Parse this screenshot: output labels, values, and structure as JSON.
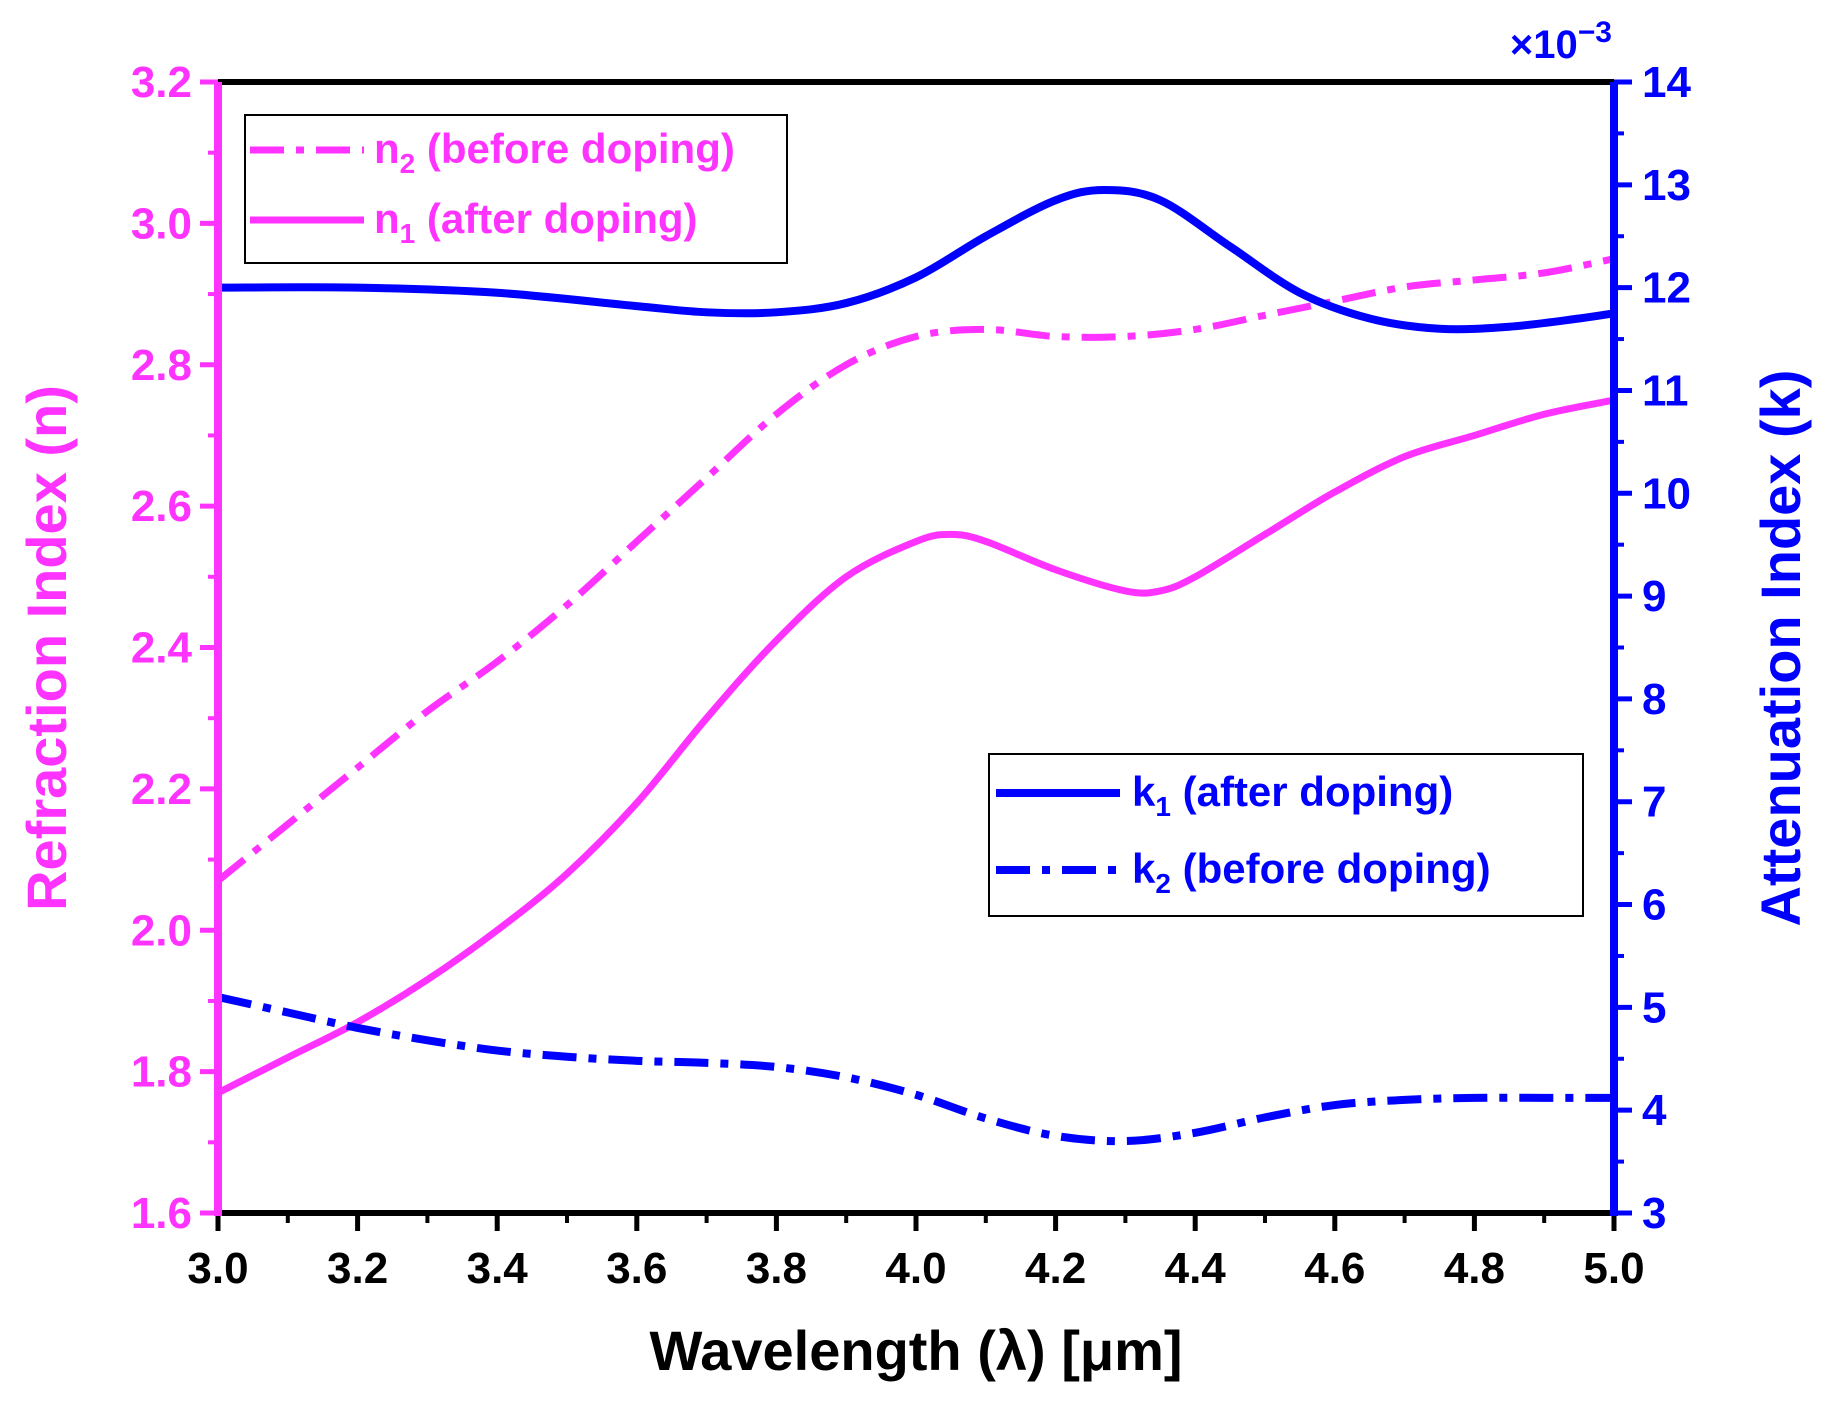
{
  "chart_data": {
    "type": "line",
    "xlabel": "Wavelength (λ) [μm]",
    "ylabel_left": "Refraction Index (n)",
    "ylabel_right": "Attenuation Index (k)",
    "right_multiplier_base": "×10",
    "right_multiplier_exp": "−3",
    "xlim": [
      3.0,
      5.0
    ],
    "ylim_left": [
      1.6,
      3.2
    ],
    "ylim_right": [
      3,
      14
    ],
    "x_ticks": [
      "3.0",
      "3.2",
      "3.4",
      "3.6",
      "3.8",
      "4.0",
      "4.2",
      "4.4",
      "4.6",
      "4.8",
      "5.0"
    ],
    "y_left_ticks": [
      "1.6",
      "1.8",
      "2.0",
      "2.2",
      "2.4",
      "2.6",
      "2.8",
      "3.0",
      "3.2"
    ],
    "y_right_ticks": [
      "3",
      "4",
      "5",
      "6",
      "7",
      "8",
      "9",
      "10",
      "11",
      "12",
      "13",
      "14"
    ],
    "colors": {
      "n": "#ff33ff",
      "k": "#0000ff",
      "frame": "#000000"
    },
    "legend_n": [
      {
        "sym": "n",
        "sub": "2",
        "rest": " (before doping)",
        "style": "dashdot"
      },
      {
        "sym": "n",
        "sub": "1",
        "rest": " (after doping)",
        "style": "solid"
      }
    ],
    "legend_k": [
      {
        "sym": "k",
        "sub": "1",
        "rest": " (after doping)",
        "style": "solid"
      },
      {
        "sym": "k",
        "sub": "2",
        "rest": " (before doping)",
        "style": "dashdot"
      }
    ],
    "series": [
      {
        "name": "n2 (before doping)",
        "axis": "left",
        "style": "dashdot",
        "x": [
          3.0,
          3.1,
          3.2,
          3.3,
          3.4,
          3.5,
          3.6,
          3.7,
          3.8,
          3.9,
          4.0,
          4.1,
          4.2,
          4.3,
          4.4,
          4.5,
          4.6,
          4.7,
          4.8,
          4.9,
          5.0
        ],
        "y": [
          2.07,
          2.15,
          2.23,
          2.31,
          2.38,
          2.46,
          2.55,
          2.64,
          2.73,
          2.8,
          2.84,
          2.85,
          2.84,
          2.84,
          2.85,
          2.87,
          2.89,
          2.91,
          2.92,
          2.93,
          2.95
        ]
      },
      {
        "name": "n1 (after doping)",
        "axis": "left",
        "style": "solid",
        "x": [
          3.0,
          3.1,
          3.2,
          3.3,
          3.4,
          3.5,
          3.6,
          3.7,
          3.8,
          3.9,
          4.0,
          4.05,
          4.1,
          4.2,
          4.3,
          4.35,
          4.4,
          4.5,
          4.6,
          4.7,
          4.8,
          4.9,
          5.0
        ],
        "y": [
          1.77,
          1.82,
          1.87,
          1.93,
          2.0,
          2.08,
          2.18,
          2.3,
          2.41,
          2.5,
          2.55,
          2.56,
          2.55,
          2.51,
          2.48,
          2.48,
          2.5,
          2.56,
          2.62,
          2.67,
          2.7,
          2.73,
          2.75
        ]
      },
      {
        "name": "k1 (after doping)",
        "axis": "right",
        "style": "solid",
        "x": [
          3.0,
          3.2,
          3.4,
          3.6,
          3.7,
          3.8,
          3.9,
          4.0,
          4.1,
          4.2,
          4.27,
          4.35,
          4.45,
          4.55,
          4.65,
          4.75,
          4.85,
          4.95,
          5.0
        ],
        "y": [
          12.0,
          12.0,
          11.95,
          11.82,
          11.76,
          11.76,
          11.85,
          12.1,
          12.5,
          12.85,
          12.95,
          12.85,
          12.4,
          11.95,
          11.7,
          11.6,
          11.62,
          11.7,
          11.75
        ]
      },
      {
        "name": "k2 (before doping)",
        "axis": "right",
        "style": "dashdot",
        "x": [
          3.0,
          3.1,
          3.2,
          3.3,
          3.4,
          3.5,
          3.6,
          3.7,
          3.8,
          3.9,
          4.0,
          4.1,
          4.2,
          4.3,
          4.4,
          4.5,
          4.6,
          4.7,
          4.8,
          4.9,
          5.0
        ],
        "y": [
          5.1,
          4.95,
          4.8,
          4.68,
          4.58,
          4.52,
          4.48,
          4.46,
          4.42,
          4.32,
          4.15,
          3.92,
          3.75,
          3.7,
          3.78,
          3.93,
          4.05,
          4.1,
          4.12,
          4.12,
          4.12
        ]
      }
    ]
  }
}
